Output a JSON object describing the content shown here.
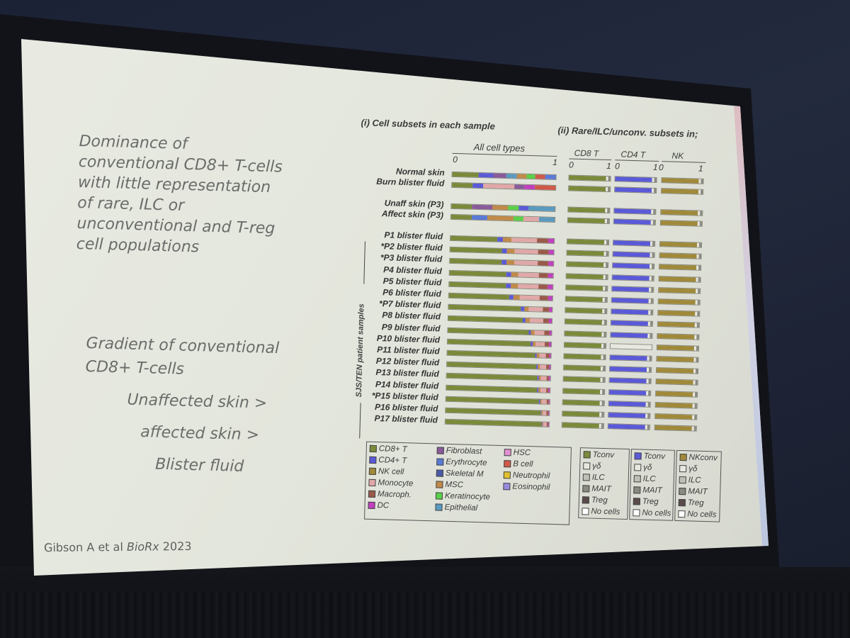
{
  "slide": {
    "headline_lines": [
      "Dominance of",
      "conventional CD8+ T-cells",
      "with little representation",
      "of rare, ILC or",
      "unconventional and T-reg",
      "cell populations"
    ],
    "gradient_lines": [
      "Gradient of conventional",
      "CD8+ T-cells"
    ],
    "steps": [
      "Unaffected skin >",
      "affected skin >",
      "Blister fluid"
    ],
    "citation_author": "Gibson A et al ",
    "citation_source": "BioRx",
    "citation_year": " 2023"
  },
  "figure": {
    "panel1_title": "(i) Cell subsets in each sample",
    "panel2_title": "(ii) Rare/ILC/unconv. subsets in;",
    "all_cell_types": "All cell types",
    "sub_headers": [
      "CD8 T",
      "CD4 T",
      "NK"
    ],
    "axis_zero": "0",
    "axis_one": "1",
    "vertical_label": "SJS/TEN patient samples",
    "top_rows": [
      "Normal skin",
      "Burn blister fluid"
    ],
    "skin_rows": [
      "Unaff skin (P3)",
      "Affect skin (P3)"
    ],
    "patient_rows": [
      "P1 blister fluid",
      "*P2 blister fluid",
      "*P3 blister fluid",
      "P4 blister fluid",
      "P5 blister fluid",
      "P6 blister fluid",
      "*P7 blister fluid",
      "P8 blister fluid",
      "P9 blister fluid",
      "P10 blister fluid",
      "P11 blister fluid",
      "P12 blister fluid",
      "P13 blister fluid",
      "P14 blister fluid",
      "*P15 blister fluid",
      "P16 blister fluid",
      "P17 blister fluid"
    ],
    "legend_main": [
      {
        "label": "CD8+ T",
        "color": "#7a8a3a"
      },
      {
        "label": "CD4+ T",
        "color": "#5a5ad8"
      },
      {
        "label": "NK cell",
        "color": "#a08a3a"
      },
      {
        "label": "Monocyte",
        "color": "#e0a8a8"
      },
      {
        "label": "Macroph.",
        "color": "#9a5a4a"
      },
      {
        "label": "DC",
        "color": "#c040c0"
      },
      {
        "label": "Fibroblast",
        "color": "#8a5a9a"
      },
      {
        "label": "Erythrocyte",
        "color": "#5a7ad8"
      },
      {
        "label": "Skeletal M",
        "color": "#4a5aa8"
      },
      {
        "label": "MSC",
        "color": "#c08a4a"
      },
      {
        "label": "Keratinocyte",
        "color": "#5ad04a"
      },
      {
        "label": "Epithelial",
        "color": "#5a9ac0"
      },
      {
        "label": "HSC",
        "color": "#e090d0"
      },
      {
        "label": "B cell",
        "color": "#d05a4a"
      },
      {
        "label": "Neutrophil",
        "color": "#e0c030"
      },
      {
        "label": "Eosinophil",
        "color": "#9a8ae0"
      }
    ],
    "legend_cd8": [
      {
        "label": "Tconv",
        "color": "#7a8a3a"
      },
      {
        "label": "γδ",
        "color": "#e8e8e0"
      },
      {
        "label": "ILC",
        "color": "#c0c0b8"
      },
      {
        "label": "MAIT",
        "color": "#8a8a80"
      },
      {
        "label": "Treg",
        "color": "#5a4a4a"
      },
      {
        "label": "No cells",
        "color": "#ffffff"
      }
    ],
    "legend_cd4": [
      {
        "label": "Tconv",
        "color": "#5a5ad8"
      },
      {
        "label": "γδ",
        "color": "#e8e8e0"
      },
      {
        "label": "ILC",
        "color": "#c0c0b8"
      },
      {
        "label": "MAIT",
        "color": "#8a8a80"
      },
      {
        "label": "Treg",
        "color": "#5a4a4a"
      },
      {
        "label": "No cells",
        "color": "#ffffff"
      }
    ],
    "legend_nk": [
      {
        "label": "NKconv",
        "color": "#a08a3a"
      },
      {
        "label": "γδ",
        "color": "#e8e8e0"
      },
      {
        "label": "ILC",
        "color": "#c0c0b8"
      },
      {
        "label": "MAIT",
        "color": "#8a8a80"
      },
      {
        "label": "Treg",
        "color": "#5a4a4a"
      },
      {
        "label": "No cells",
        "color": "#ffffff"
      }
    ]
  }
}
